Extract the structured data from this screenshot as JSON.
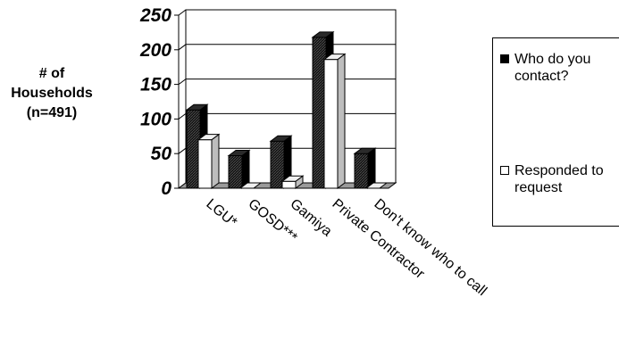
{
  "chart_data": {
    "type": "bar",
    "style": "3d-clustered",
    "ylabel": [
      "# of",
      "Households",
      "(n=491)"
    ],
    "ylim": [
      0,
      250
    ],
    "yticks": [
      0,
      50,
      100,
      150,
      200,
      250
    ],
    "grid": true,
    "categories": [
      "LGU*",
      "GOSD***",
      "Gamiya",
      "Private Contractor",
      "Don't know who to call"
    ],
    "series": [
      {
        "name": "Who do you contact?",
        "values": [
          113,
          47,
          68,
          218,
          50
        ],
        "color": "#000000"
      },
      {
        "name": "Responded to request",
        "values": [
          70,
          0,
          10,
          186,
          0
        ],
        "color": "#ffffff"
      }
    ],
    "legend_position": "right"
  }
}
